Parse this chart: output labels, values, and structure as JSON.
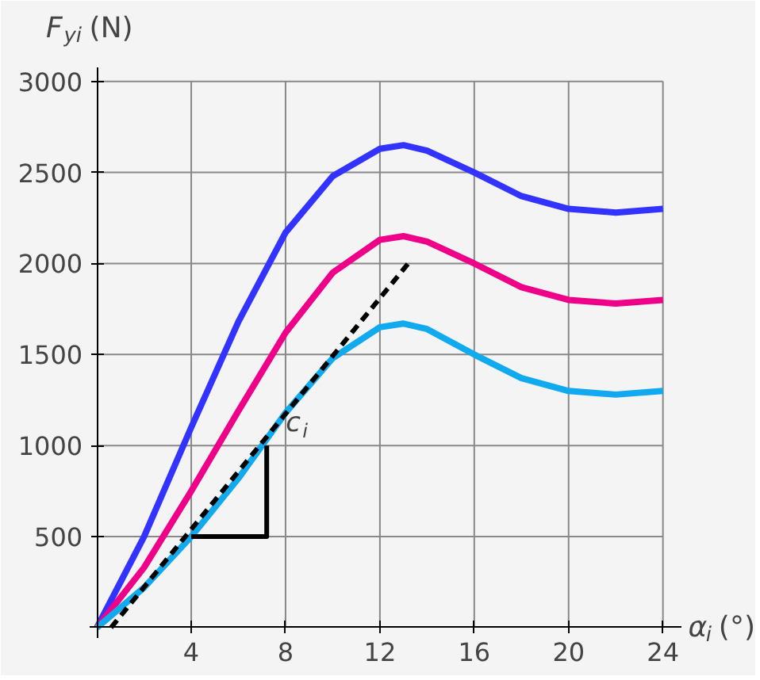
{
  "chart_data": {
    "type": "line",
    "xlabel": "α$_{i}$(°)",
    "ylabel": "F$_{yi}$(N)",
    "xlim": [
      -0.3,
      24.8
    ],
    "ylim": [
      -60,
      3080
    ],
    "xticks": [
      4,
      8,
      12,
      16,
      20,
      24
    ],
    "yticks": [
      {
        "value": 0,
        "label": null
      },
      500,
      1000,
      1500,
      2000,
      2500,
      3000
    ],
    "grid": true,
    "series": [
      {
        "color": "#3333ff",
        "x": [
          0,
          2,
          4,
          6,
          8,
          10,
          12,
          13,
          14,
          16,
          18,
          20,
          22,
          24
        ],
        "values": [
          0,
          500,
          1100,
          1680,
          2170,
          2480,
          2630,
          2650,
          2620,
          2500,
          2370,
          2300,
          2280,
          2300
        ]
      },
      {
        "color": "#ee0088",
        "x": [
          0,
          2,
          4,
          6,
          8,
          10,
          12,
          13,
          14,
          16,
          18,
          20,
          22,
          24
        ],
        "values": [
          0,
          330,
          750,
          1190,
          1620,
          1950,
          2130,
          2150,
          2120,
          2000,
          1870,
          1800,
          1780,
          1800
        ]
      },
      {
        "color": "#11aaee",
        "x": [
          0,
          2,
          4,
          6,
          8,
          10,
          12,
          13,
          14,
          16,
          18,
          20,
          22,
          24
        ],
        "values": [
          0,
          220,
          500,
          820,
          1180,
          1480,
          1650,
          1670,
          1640,
          1500,
          1370,
          1300,
          1280,
          1300
        ]
      },
      {
        "color": "#000000",
        "line_style": "dashed",
        "x": [
          0.6,
          13.2
        ],
        "values": [
          0,
          2000
        ]
      },
      {
        "color": "#000000",
        "x": [
          4,
          7.2,
          7.2
        ],
        "values": [
          500,
          500,
          1000
        ]
      }
    ],
    "annotations": [
      {
        "text": "c$_{i}$",
        "x": 7.2,
        "y": 1000
      }
    ]
  }
}
